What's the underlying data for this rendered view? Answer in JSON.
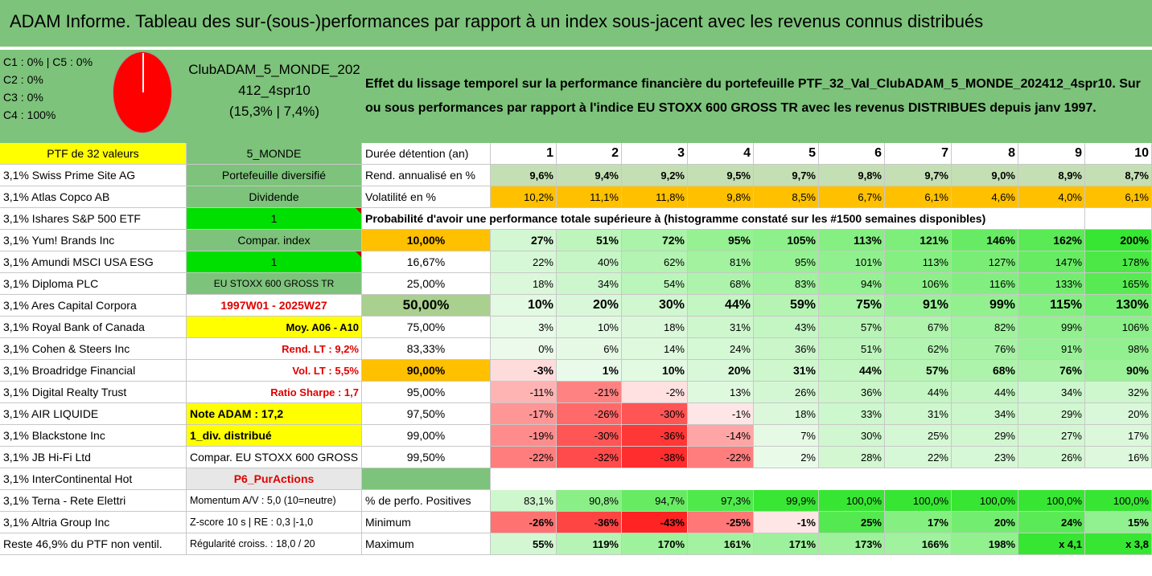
{
  "title": "ADAM Informe. Tableau des sur-(sous-)performances par rapport à un index sous-jacent avec les revenus connus distribués",
  "summary": {
    "c_lines": [
      "C1 : 0% | C5 : 0%",
      "C2 : 0%",
      "C3 : 0%",
      "C4 : 100%"
    ],
    "club_name_1": "ClubADAM_5_MONDE_202",
    "club_name_2": "412_4spr10",
    "club_perf": "(15,3% | 7,4%)",
    "description": "Effet du lissage temporel sur la performance financière du portefeuille PTF_32_Val_ClubADAM_5_MONDE_202412_4spr10. Sur ou sous performances par rapport à l'indice EU STOXX 600 GROSS TR avec les revenus DISTRIBUES depuis janv 1997."
  },
  "col_headers": [
    "1",
    "2",
    "3",
    "4",
    "5",
    "6",
    "7",
    "8",
    "9",
    "10"
  ],
  "left_col": {
    "header": "PTF de 32 valeurs",
    "rows": [
      "3,1% Swiss Prime Site AG",
      "3,1% Atlas Copco AB",
      "3,1% Ishares S&P 500 ETF",
      "3,1% Yum! Brands Inc",
      "3,1% Amundi MSCI USA ESG",
      "3,1% Diploma PLC",
      "3,1% Ares Capital Corpora",
      "3,1% Royal Bank of Canada",
      "3,1% Cohen & Steers Inc",
      "3,1% Broadridge Financial",
      "3,1% Digital Realty Trust",
      "3,1% AIR LIQUIDE",
      "3,1% Blackstone Inc",
      "3,1% JB Hi-Fi Ltd",
      "3,1% InterContinental Hot",
      "3,1% Terna - Rete Elettri",
      "3,1% Altria Group Inc",
      "Reste 46,9% du PTF non ventil."
    ]
  },
  "mid_col": {
    "header": "5_MONDE",
    "rows": [
      "Portefeuille diversifié",
      "Dividende",
      "1",
      "Compar. index",
      "1",
      "EU STOXX 600 GROSS TR",
      "1997W01 - 2025W27",
      "Moy. A06 - A10",
      "Rend. LT : 9,2%",
      "Vol. LT : 5,5%",
      "Ratio Sharpe : 1,7",
      "Note ADAM : 17,2",
      "1_div. distribué",
      "Compar. EU STOXX 600 GROSS TR",
      "P6_PurActions",
      "Momentum A/V : 5,0 (10=neutre)",
      "Z-score 10 s | RE : 0,3 |-1,0",
      "Régularité croiss. : 18,0 / 20"
    ]
  },
  "stats": {
    "duree_label": "Durée détention (an)",
    "rend_label": "Rend. annualisé en %",
    "rend": [
      "9,6%",
      "9,4%",
      "9,2%",
      "9,5%",
      "9,7%",
      "9,8%",
      "9,7%",
      "9,0%",
      "8,9%",
      "8,7%"
    ],
    "vol_label": "Volatilité en %",
    "vol": [
      "10,2%",
      "11,1%",
      "11,8%",
      "9,8%",
      "8,5%",
      "6,7%",
      "6,1%",
      "4,6%",
      "4,0%",
      "6,1%"
    ],
    "proba_title": "Probabilité d'avoir une performance totale supérieure à (histogramme constaté sur les #1500 semaines disponibles)"
  },
  "proba_rows": [
    {
      "pct": "10,00%",
      "vals": [
        "27%",
        "51%",
        "72%",
        "95%",
        "105%",
        "113%",
        "121%",
        "146%",
        "162%",
        "200%"
      ]
    },
    {
      "pct": "16,67%",
      "vals": [
        "22%",
        "40%",
        "62%",
        "81%",
        "95%",
        "101%",
        "113%",
        "127%",
        "147%",
        "178%"
      ]
    },
    {
      "pct": "25,00%",
      "vals": [
        "18%",
        "34%",
        "54%",
        "68%",
        "83%",
        "94%",
        "106%",
        "116%",
        "133%",
        "165%"
      ]
    },
    {
      "pct": "50,00%",
      "vals": [
        "10%",
        "20%",
        "30%",
        "44%",
        "59%",
        "75%",
        "91%",
        "99%",
        "115%",
        "130%"
      ]
    },
    {
      "pct": "75,00%",
      "vals": [
        "3%",
        "10%",
        "18%",
        "31%",
        "43%",
        "57%",
        "67%",
        "82%",
        "99%",
        "106%"
      ]
    },
    {
      "pct": "83,33%",
      "vals": [
        "0%",
        "6%",
        "14%",
        "24%",
        "36%",
        "51%",
        "62%",
        "76%",
        "91%",
        "98%"
      ]
    },
    {
      "pct": "90,00%",
      "vals": [
        "-3%",
        "1%",
        "10%",
        "20%",
        "31%",
        "44%",
        "57%",
        "68%",
        "76%",
        "90%"
      ]
    },
    {
      "pct": "95,00%",
      "vals": [
        "-11%",
        "-21%",
        "-2%",
        "13%",
        "26%",
        "36%",
        "44%",
        "44%",
        "34%",
        "32%"
      ]
    },
    {
      "pct": "97,50%",
      "vals": [
        "-17%",
        "-26%",
        "-30%",
        "-1%",
        "18%",
        "33%",
        "31%",
        "34%",
        "29%",
        "20%"
      ]
    },
    {
      "pct": "99,00%",
      "vals": [
        "-19%",
        "-30%",
        "-36%",
        "-14%",
        "7%",
        "30%",
        "25%",
        "29%",
        "27%",
        "17%"
      ]
    },
    {
      "pct": "99,50%",
      "vals": [
        "-22%",
        "-32%",
        "-38%",
        "-22%",
        "2%",
        "28%",
        "22%",
        "23%",
        "26%",
        "16%"
      ]
    }
  ],
  "bottom": {
    "pos_label": "% de perfo. Positives",
    "pos": [
      "83,1%",
      "90,8%",
      "94,7%",
      "97,3%",
      "99,9%",
      "100,0%",
      "100,0%",
      "100,0%",
      "100,0%",
      "100,0%"
    ],
    "min_label": "Minimum",
    "min": [
      "-26%",
      "-36%",
      "-43%",
      "-25%",
      "-1%",
      "25%",
      "17%",
      "20%",
      "24%",
      "15%"
    ],
    "max_label": "Maximum",
    "max": [
      "55%",
      "119%",
      "170%",
      "161%",
      "171%",
      "173%",
      "166%",
      "198%",
      "x 4,1",
      "x 3,8"
    ]
  },
  "colors": {
    "header_green": "#7dc37b",
    "yellow": "#ffff00",
    "bright_green": "#00e000",
    "orange": "#ffc000",
    "red_text": "#e00000",
    "rend_green": "#c5dfb4",
    "mid_green": "#a9d08e",
    "pie_red": "#ff0000"
  }
}
